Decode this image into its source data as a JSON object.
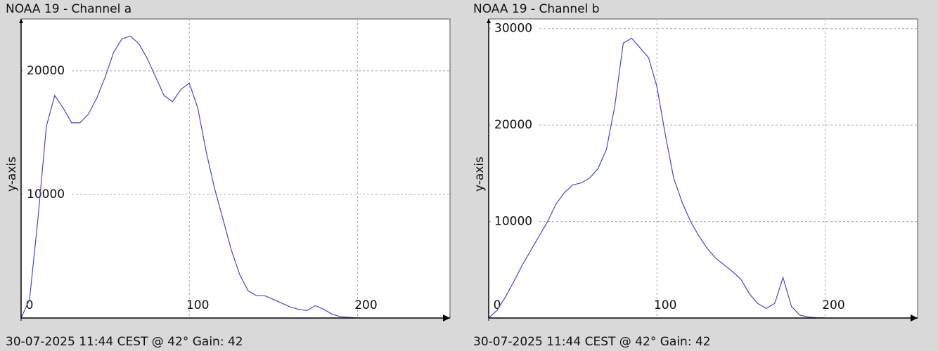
{
  "chart_data": [
    {
      "type": "line",
      "title": "NOAA 19 - Channel a",
      "footer": "30-07-2025 11:44 CEST @ 42° Gain: 42",
      "ylabel": "y-axis",
      "x": [
        0,
        5,
        10,
        15,
        20,
        25,
        30,
        35,
        40,
        45,
        50,
        55,
        60,
        65,
        70,
        75,
        80,
        85,
        90,
        95,
        100,
        105,
        110,
        115,
        120,
        125,
        130,
        135,
        140,
        145,
        150,
        155,
        160,
        165,
        170,
        175,
        180,
        185,
        190,
        195,
        200
      ],
      "values": [
        0,
        1500,
        8000,
        15500,
        18000,
        17000,
        15800,
        15800,
        16500,
        17800,
        19500,
        21500,
        22600,
        22800,
        22200,
        21000,
        19500,
        18000,
        17500,
        18500,
        19000,
        17000,
        13500,
        10500,
        8000,
        5500,
        3500,
        2200,
        1800,
        1800,
        1500,
        1200,
        900,
        700,
        600,
        1000,
        700,
        300,
        100,
        50,
        0
      ],
      "color": "#4646d2",
      "xlim": [
        0,
        255
      ],
      "ylim": [
        0,
        24200
      ],
      "xticks": [
        0,
        100,
        200
      ],
      "yticks": [
        10000,
        20000
      ],
      "grid": true
    },
    {
      "type": "line",
      "title": "NOAA 19 - Channel b",
      "footer": "30-07-2025 11:44 CEST @ 42° Gain: 42",
      "ylabel": "y-axis",
      "x": [
        0,
        5,
        10,
        15,
        20,
        25,
        30,
        35,
        40,
        45,
        50,
        55,
        60,
        65,
        70,
        75,
        80,
        85,
        90,
        95,
        100,
        105,
        110,
        115,
        120,
        125,
        130,
        135,
        140,
        145,
        150,
        155,
        160,
        165,
        170,
        175,
        180,
        185,
        190,
        195,
        200
      ],
      "values": [
        0,
        800,
        2200,
        3800,
        5500,
        7000,
        8500,
        10000,
        11800,
        13000,
        13800,
        14000,
        14500,
        15500,
        17500,
        22000,
        28500,
        29000,
        28000,
        27000,
        24000,
        19000,
        14500,
        12000,
        10000,
        8500,
        7200,
        6200,
        5500,
        4800,
        4000,
        2500,
        1500,
        1000,
        1500,
        4200,
        1200,
        300,
        100,
        30,
        0
      ],
      "color": "#4646d2",
      "xlim": [
        0,
        255
      ],
      "ylim": [
        0,
        31000
      ],
      "xticks": [
        0,
        100,
        200
      ],
      "yticks": [
        10000,
        20000,
        30000
      ],
      "grid": true
    }
  ]
}
